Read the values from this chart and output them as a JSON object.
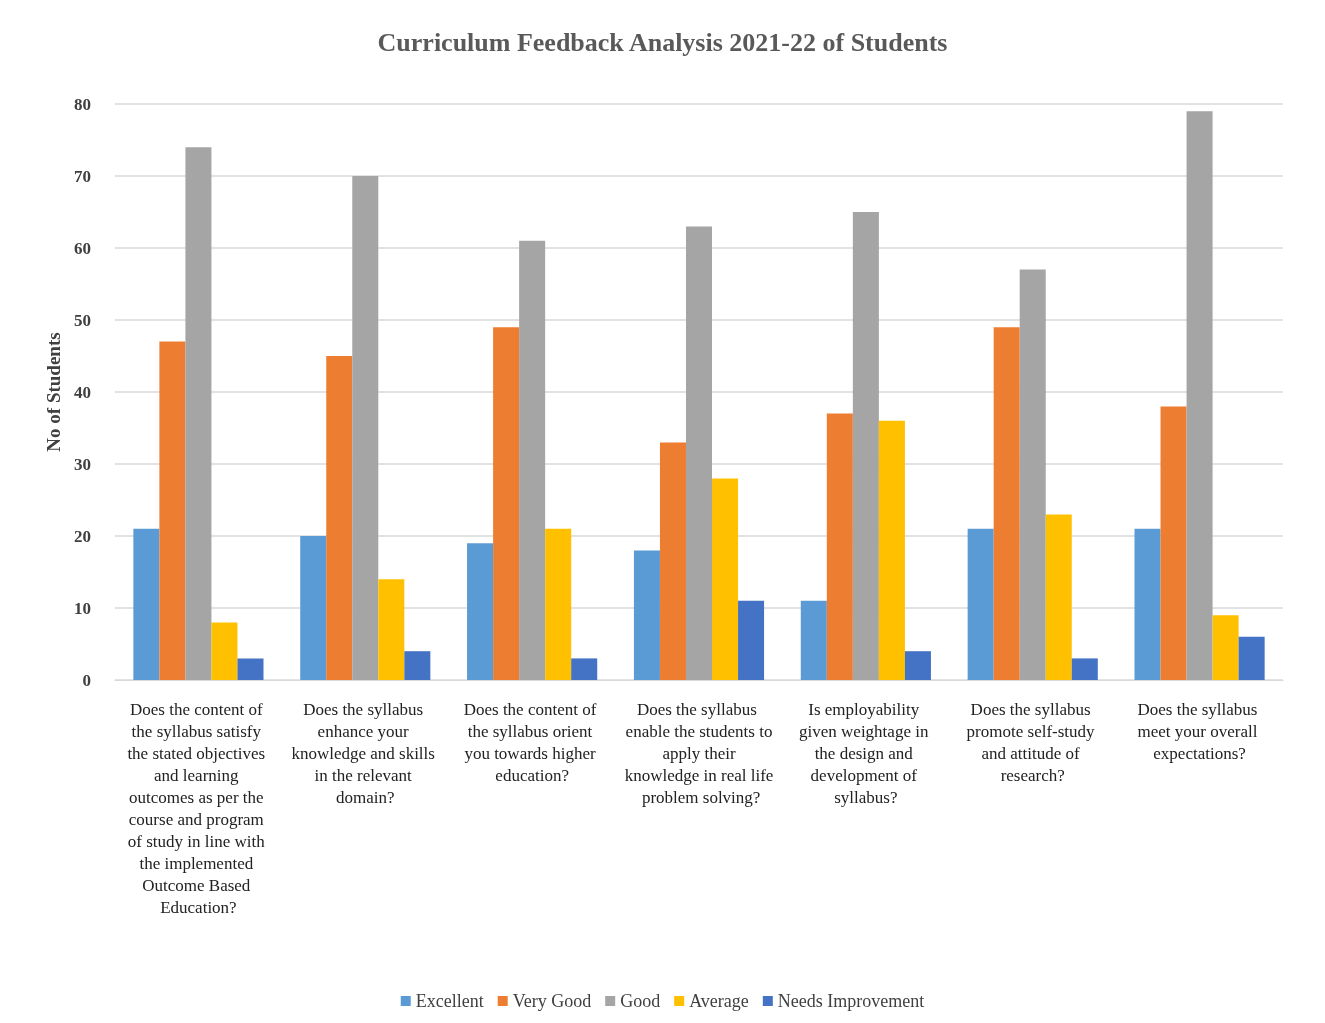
{
  "chart_data": {
    "type": "bar",
    "title": "Curriculum Feedback Analysis 2021-22 of Students",
    "ylabel": "No of Students",
    "categories": [
      "Does the content of the syllabus satisfy the stated objectives and learning outcomes as per the course and program of study in line with the implemented Outcome Based Education?",
      "Does the syllabus enhance your knowledge and skills in the relevant domain?",
      "Does the content of the syllabus orient you towards higher education?",
      "Does the syllabus enable the students to apply their knowledge in real life problem solving?",
      "Is employability given weightage in the design and development of syllabus?",
      "Does the syllabus promote self-study and attitude of research?",
      "Does the syllabus meet your overall expectations?"
    ],
    "series": [
      {
        "name": "Excellent",
        "color": "#5b9bd5",
        "values": [
          21,
          20,
          19,
          18,
          11,
          21,
          21
        ]
      },
      {
        "name": "Very Good",
        "color": "#ed7d31",
        "values": [
          47,
          45,
          49,
          33,
          37,
          49,
          38
        ]
      },
      {
        "name": "Good",
        "color": "#a5a5a5",
        "values": [
          74,
          70,
          61,
          63,
          65,
          57,
          79
        ]
      },
      {
        "name": "Average",
        "color": "#ffc000",
        "values": [
          8,
          14,
          21,
          28,
          36,
          23,
          9
        ]
      },
      {
        "name": "Needs Improvement",
        "color": "#4472c4",
        "values": [
          3,
          4,
          3,
          11,
          4,
          3,
          6
        ]
      }
    ],
    "ylim": [
      0,
      80
    ],
    "yticks": [
      0,
      10,
      20,
      30,
      40,
      50,
      60,
      70,
      80
    ],
    "grid": "y",
    "legend": "bottom"
  }
}
